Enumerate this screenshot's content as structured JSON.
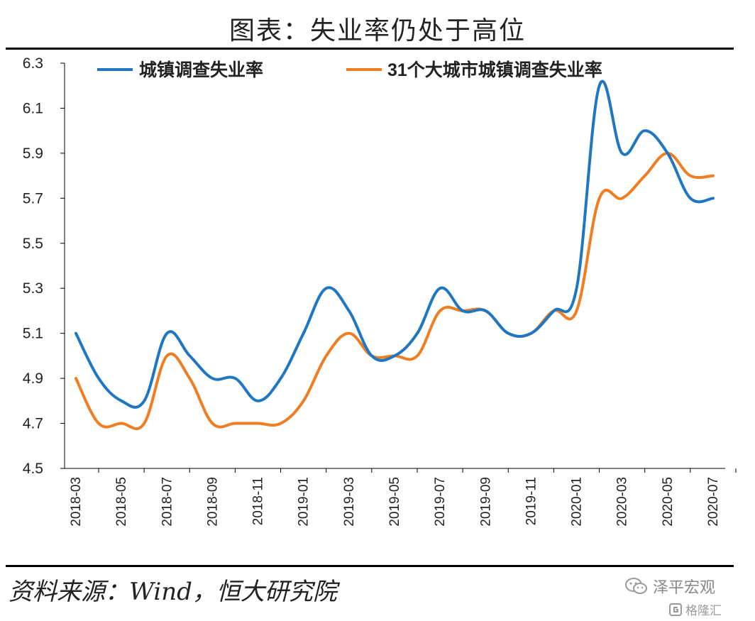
{
  "page": {
    "title": "图表：失业率仍处于高位",
    "source": "资料来源：Wind，恒大研究院",
    "watermark_top": "泽平宏观",
    "watermark_bottom": "格隆汇"
  },
  "colors": {
    "series_blue": "#1f77c4",
    "series_orange": "#ef7d22",
    "axis": "#000000",
    "text": "#222222"
  },
  "icons": {
    "wechat": "wechat-icon",
    "gelonghui": "gelonghui-logo-icon"
  },
  "chart_data": {
    "type": "line",
    "title": "",
    "xlabel": "",
    "ylabel": "",
    "ylim": [
      4.5,
      6.3
    ],
    "yticks": [
      "4.5",
      "4.7",
      "4.9",
      "5.1",
      "5.3",
      "5.5",
      "5.7",
      "5.9",
      "6.1",
      "6.3"
    ],
    "grid": false,
    "legend": "top, horizontal",
    "x": [
      "2018-03",
      "2018-04",
      "2018-05",
      "2018-06",
      "2018-07",
      "2018-08",
      "2018-09",
      "2018-10",
      "2018-11",
      "2018-12",
      "2019-01",
      "2019-02",
      "2019-03",
      "2019-04",
      "2019-05",
      "2019-06",
      "2019-07",
      "2019-08",
      "2019-09",
      "2019-10",
      "2019-11",
      "2019-12",
      "2020-01",
      "2020-02",
      "2020-03",
      "2020-04",
      "2020-05",
      "2020-06",
      "2020-07"
    ],
    "xticks": [
      "2018-03",
      "2018-05",
      "2018-07",
      "2018-09",
      "2018-11",
      "2019-01",
      "2019-03",
      "2019-05",
      "2019-07",
      "2019-09",
      "2019-11",
      "2020-01",
      "2020-03",
      "2020-05",
      "2020-07"
    ],
    "series": [
      {
        "name": "城镇调查失业率",
        "color": "#1f77c4",
        "values": [
          5.1,
          4.9,
          4.8,
          4.8,
          5.1,
          5.0,
          4.9,
          4.9,
          4.8,
          4.9,
          5.1,
          5.3,
          5.2,
          5.0,
          5.0,
          5.1,
          5.3,
          5.2,
          5.2,
          5.1,
          5.1,
          5.2,
          5.3,
          6.2,
          5.9,
          6.0,
          5.9,
          5.7,
          5.7
        ]
      },
      {
        "name": "31个大城市城镇调查失业率",
        "color": "#ef7d22",
        "values": [
          4.9,
          4.7,
          4.7,
          4.7,
          5.0,
          4.9,
          4.7,
          4.7,
          4.7,
          4.7,
          4.8,
          5.0,
          5.1,
          5.0,
          5.0,
          5.0,
          5.2,
          5.2,
          5.2,
          5.1,
          5.1,
          5.2,
          5.2,
          5.7,
          5.7,
          5.8,
          5.9,
          5.8,
          5.8
        ]
      }
    ]
  }
}
